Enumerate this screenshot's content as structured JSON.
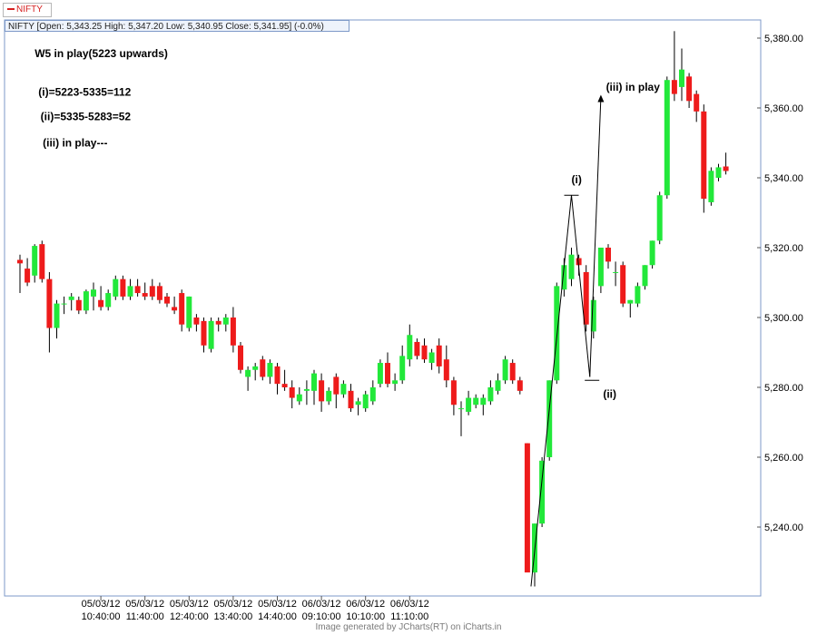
{
  "legend": {
    "label": "NIFTY",
    "color": "#d62020"
  },
  "quote_bar": "NIFTY [Open: 5,343.25  High: 5,347.20  Low: 5,340.95  Close: 5,341.95] (-0.0%)",
  "footer": "Image generated by  JCharts(RT) on iCharts.in",
  "colors": {
    "up": "#22e83a",
    "down": "#ee1b1b",
    "border": "#7d99c8",
    "wick": "#000000"
  },
  "chart_data": {
    "type": "candlestick",
    "symbol": "NIFTY",
    "interval_minutes": 10,
    "ylim": [
      5220,
      5387
    ],
    "y_ticks": [
      5240,
      5260,
      5280,
      5300,
      5320,
      5340,
      5360,
      5380
    ],
    "y_tick_labels": [
      "5,240.00",
      "5,260.00",
      "5,280.00",
      "5,300.00",
      "5,320.00",
      "5,340.00",
      "5,360.00",
      "5,380.00"
    ],
    "x_ticks": [
      {
        "index": 11,
        "date": "05/03/12",
        "time": "10:40:00"
      },
      {
        "index": 17,
        "date": "05/03/12",
        "time": "11:40:00"
      },
      {
        "index": 23,
        "date": "05/03/12",
        "time": "12:40:00"
      },
      {
        "index": 29,
        "date": "05/03/12",
        "time": "13:40:00"
      },
      {
        "index": 35,
        "date": "05/03/12",
        "time": "14:40:00"
      },
      {
        "index": 41,
        "date": "06/03/12",
        "time": "09:10:00"
      },
      {
        "index": 47,
        "date": "06/03/12",
        "time": "10:10:00"
      },
      {
        "index": 53,
        "date": "06/03/12",
        "time": "11:10:00"
      }
    ],
    "candles": [
      {
        "o": 5316.5,
        "h": 5318,
        "l": 5307,
        "c": 5315.5
      },
      {
        "o": 5314,
        "h": 5317,
        "l": 5309,
        "c": 5310
      },
      {
        "o": 5312,
        "h": 5321,
        "l": 5310,
        "c": 5320.5
      },
      {
        "o": 5321,
        "h": 5322,
        "l": 5310,
        "c": 5311
      },
      {
        "o": 5311,
        "h": 5313,
        "l": 5290,
        "c": 5297
      },
      {
        "o": 5297,
        "h": 5305,
        "l": 5294,
        "c": 5304
      },
      {
        "o": 5304,
        "h": 5306,
        "l": 5301,
        "c": 5304
      },
      {
        "o": 5305,
        "h": 5307,
        "l": 5302,
        "c": 5306
      },
      {
        "o": 5305,
        "h": 5306,
        "l": 5301,
        "c": 5302
      },
      {
        "o": 5302,
        "h": 5308,
        "l": 5301,
        "c": 5307.5
      },
      {
        "o": 5306,
        "h": 5310,
        "l": 5302,
        "c": 5308
      },
      {
        "o": 5305,
        "h": 5309,
        "l": 5302,
        "c": 5303
      },
      {
        "o": 5303,
        "h": 5308,
        "l": 5302,
        "c": 5307
      },
      {
        "o": 5306,
        "h": 5312,
        "l": 5305,
        "c": 5311
      },
      {
        "o": 5311,
        "h": 5312,
        "l": 5305,
        "c": 5306
      },
      {
        "o": 5306,
        "h": 5311,
        "l": 5305,
        "c": 5309
      },
      {
        "o": 5309,
        "h": 5311,
        "l": 5306,
        "c": 5307
      },
      {
        "o": 5307,
        "h": 5310,
        "l": 5305,
        "c": 5306
      },
      {
        "o": 5309,
        "h": 5311,
        "l": 5305,
        "c": 5306
      },
      {
        "o": 5309,
        "h": 5310,
        "l": 5304,
        "c": 5305
      },
      {
        "o": 5306,
        "h": 5307,
        "l": 5303,
        "c": 5304
      },
      {
        "o": 5303,
        "h": 5306,
        "l": 5301,
        "c": 5302
      },
      {
        "o": 5307,
        "h": 5308,
        "l": 5296,
        "c": 5298
      },
      {
        "o": 5297,
        "h": 5306,
        "l": 5296,
        "c": 5306
      },
      {
        "o": 5300,
        "h": 5301,
        "l": 5296,
        "c": 5298
      },
      {
        "o": 5299,
        "h": 5300,
        "l": 5290,
        "c": 5292
      },
      {
        "o": 5291,
        "h": 5300,
        "l": 5290,
        "c": 5299
      },
      {
        "o": 5299,
        "h": 5300,
        "l": 5296,
        "c": 5298
      },
      {
        "o": 5298,
        "h": 5301,
        "l": 5296,
        "c": 5300
      },
      {
        "o": 5300,
        "h": 5303,
        "l": 5290,
        "c": 5292
      },
      {
        "o": 5292,
        "h": 5293,
        "l": 5284,
        "c": 5285
      },
      {
        "o": 5283,
        "h": 5286,
        "l": 5279,
        "c": 5285
      },
      {
        "o": 5285,
        "h": 5287,
        "l": 5282,
        "c": 5286
      },
      {
        "o": 5288,
        "h": 5289,
        "l": 5282,
        "c": 5283
      },
      {
        "o": 5283,
        "h": 5288,
        "l": 5281,
        "c": 5287
      },
      {
        "o": 5286,
        "h": 5287,
        "l": 5278,
        "c": 5281
      },
      {
        "o": 5281,
        "h": 5285,
        "l": 5279,
        "c": 5280
      },
      {
        "o": 5280,
        "h": 5282,
        "l": 5274,
        "c": 5277
      },
      {
        "o": 5276,
        "h": 5280,
        "l": 5275,
        "c": 5278
      },
      {
        "o": 5279,
        "h": 5282,
        "l": 5275,
        "c": 5279.5
      },
      {
        "o": 5279,
        "h": 5285,
        "l": 5275,
        "c": 5284
      },
      {
        "o": 5282,
        "h": 5284,
        "l": 5273,
        "c": 5276
      },
      {
        "o": 5276,
        "h": 5280,
        "l": 5275,
        "c": 5279
      },
      {
        "o": 5283,
        "h": 5284,
        "l": 5274,
        "c": 5278
      },
      {
        "o": 5278,
        "h": 5282,
        "l": 5277,
        "c": 5281
      },
      {
        "o": 5279,
        "h": 5281,
        "l": 5273,
        "c": 5274
      },
      {
        "o": 5275,
        "h": 5277,
        "l": 5272,
        "c": 5276
      },
      {
        "o": 5274,
        "h": 5279,
        "l": 5273,
        "c": 5278
      },
      {
        "o": 5276,
        "h": 5282,
        "l": 5275,
        "c": 5280
      },
      {
        "o": 5281,
        "h": 5288,
        "l": 5280,
        "c": 5287
      },
      {
        "o": 5287,
        "h": 5290,
        "l": 5280,
        "c": 5281
      },
      {
        "o": 5281,
        "h": 5284,
        "l": 5279,
        "c": 5282
      },
      {
        "o": 5282,
        "h": 5292,
        "l": 5281,
        "c": 5289
      },
      {
        "o": 5288,
        "h": 5298,
        "l": 5286,
        "c": 5295
      },
      {
        "o": 5293,
        "h": 5294,
        "l": 5288,
        "c": 5289
      },
      {
        "o": 5292,
        "h": 5294,
        "l": 5287,
        "c": 5288
      },
      {
        "o": 5287,
        "h": 5291,
        "l": 5285,
        "c": 5290
      },
      {
        "o": 5292,
        "h": 5294,
        "l": 5284,
        "c": 5286
      },
      {
        "o": 5288,
        "h": 5292,
        "l": 5280,
        "c": 5282
      },
      {
        "o": 5282,
        "h": 5283,
        "l": 5272,
        "c": 5275
      },
      {
        "o": 5274,
        "h": 5276,
        "l": 5266,
        "c": 5274
      },
      {
        "o": 5273,
        "h": 5279,
        "l": 5272,
        "c": 5277
      },
      {
        "o": 5275,
        "h": 5278,
        "l": 5274,
        "c": 5277
      },
      {
        "o": 5275,
        "h": 5278,
        "l": 5272,
        "c": 5277
      },
      {
        "o": 5276,
        "h": 5282,
        "l": 5275,
        "c": 5280
      },
      {
        "o": 5279,
        "h": 5284,
        "l": 5278,
        "c": 5282
      },
      {
        "o": 5282,
        "h": 5289,
        "l": 5281,
        "c": 5288
      },
      {
        "o": 5287,
        "h": 5288,
        "l": 5281,
        "c": 5282
      },
      {
        "o": 5282,
        "h": 5283,
        "l": 5278,
        "c": 5279
      },
      {
        "o": 5264,
        "h": 5264,
        "l": 5227,
        "c": 5227
      },
      {
        "o": 5227,
        "h": 5241,
        "l": 5223,
        "c": 5241
      },
      {
        "o": 5241,
        "h": 5260,
        "l": 5240,
        "c": 5259
      },
      {
        "o": 5260,
        "h": 5282,
        "l": 5259,
        "c": 5282
      },
      {
        "o": 5282,
        "h": 5310,
        "l": 5281,
        "c": 5309
      },
      {
        "o": 5308,
        "h": 5317,
        "l": 5306,
        "c": 5315
      },
      {
        "o": 5311,
        "h": 5320,
        "l": 5309,
        "c": 5318
      },
      {
        "o": 5317,
        "h": 5318,
        "l": 5312,
        "c": 5315
      },
      {
        "o": 5313,
        "h": 5315,
        "l": 5296,
        "c": 5298
      },
      {
        "o": 5296,
        "h": 5306,
        "l": 5294,
        "c": 5305
      },
      {
        "o": 5309,
        "h": 5320,
        "l": 5307,
        "c": 5320
      },
      {
        "o": 5320,
        "h": 5321,
        "l": 5314,
        "c": 5316
      },
      {
        "o": 5313,
        "h": 5316,
        "l": 5309,
        "c": 5313
      },
      {
        "o": 5315,
        "h": 5316,
        "l": 5303,
        "c": 5304
      },
      {
        "o": 5304,
        "h": 5305,
        "l": 5300,
        "c": 5305
      },
      {
        "o": 5304,
        "h": 5310,
        "l": 5303,
        "c": 5309
      },
      {
        "o": 5309,
        "h": 5315,
        "l": 5308,
        "c": 5315
      },
      {
        "o": 5315,
        "h": 5322,
        "l": 5314,
        "c": 5322
      },
      {
        "o": 5322,
        "h": 5336,
        "l": 5321,
        "c": 5335
      },
      {
        "o": 5335,
        "h": 5369,
        "l": 5334,
        "c": 5368
      },
      {
        "o": 5368,
        "h": 5382,
        "l": 5362,
        "c": 5364
      },
      {
        "o": 5366,
        "h": 5377,
        "l": 5362,
        "c": 5371
      },
      {
        "o": 5369,
        "h": 5370,
        "l": 5360,
        "c": 5362
      },
      {
        "o": 5364,
        "h": 5365,
        "l": 5356,
        "c": 5359
      },
      {
        "o": 5359,
        "h": 5361,
        "l": 5330,
        "c": 5334
      },
      {
        "o": 5333,
        "h": 5343,
        "l": 5332,
        "c": 5342
      },
      {
        "o": 5340,
        "h": 5344,
        "l": 5339,
        "c": 5343
      },
      {
        "o": 5343.25,
        "h": 5347.2,
        "l": 5340.95,
        "c": 5341.95
      }
    ],
    "text_annotations": [
      {
        "text": "W5 in play(5223 upwards)",
        "index": 2,
        "y": 5374.5
      },
      {
        "text": "(i)=5223-5335=112",
        "index": 2.5,
        "y": 5363.5
      },
      {
        "text": "(ii)=5335-5283=52",
        "index": 2.8,
        "y": 5356.5
      },
      {
        "text": "(iii) in play---",
        "index": 3.1,
        "y": 5349
      },
      {
        "text": "(i)",
        "index": 75,
        "y": 5338.5
      },
      {
        "text": "(ii)",
        "index": 79.3,
        "y": 5277
      },
      {
        "text": "(iii) in play",
        "index": 79.7,
        "y": 5365
      }
    ],
    "wave_lines": [
      {
        "from": {
          "index": 69.5,
          "y": 5223
        },
        "to": {
          "index": 75,
          "y": 5335
        }
      },
      {
        "from": {
          "index": 75,
          "y": 5335
        },
        "to": {
          "index": 77.5,
          "y": 5283
        }
      },
      {
        "from": {
          "index": 77.5,
          "y": 5283
        },
        "to": {
          "index": 79,
          "y": 5363
        },
        "arrow": true
      }
    ],
    "ticks_marks": [
      {
        "index": 75,
        "y": 5335
      },
      {
        "index": 77.8,
        "y": 5282
      }
    ]
  }
}
